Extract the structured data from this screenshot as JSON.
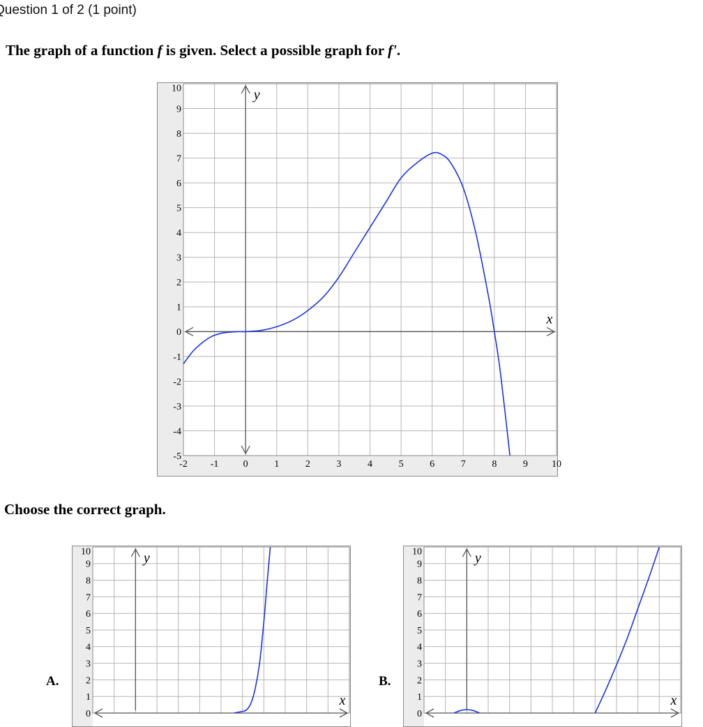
{
  "header": "Question 1 of 2 (1 point)",
  "prompt": {
    "before": "The graph of a function ",
    "fn": "f",
    "middle": " is given. Select a possible graph for ",
    "fn_prime": "f'",
    "after": "."
  },
  "choose_label": "Choose the correct graph.",
  "colors": {
    "curve": "#1a33e6",
    "grid": "#b5b5b5",
    "axis": "#555555",
    "frame": "#8a8a8a"
  },
  "chart_data": [
    {
      "id": "main",
      "type": "line",
      "xlabel": "x",
      "ylabel": "y",
      "xlim": [
        -2,
        10
      ],
      "ylim": [
        -5,
        10
      ],
      "xticks": [
        "-2",
        "-1",
        "0",
        "1",
        "2",
        "3",
        "4",
        "5",
        "6",
        "7",
        "8",
        "9",
        "10"
      ],
      "yticks": [
        "10",
        "9",
        "8",
        "7",
        "6",
        "5",
        "4",
        "3",
        "2",
        "1",
        "0",
        "-1",
        "-2",
        "-3",
        "-4",
        "-5"
      ],
      "grid": true,
      "series": [
        {
          "x": [
            -2,
            -1.7,
            -1.4,
            -1.1,
            -0.8,
            -0.5,
            -0.2,
            0,
            0.5,
            1,
            1.5,
            2,
            2.5,
            3,
            3.5,
            4,
            4.5,
            5,
            5.5,
            6,
            6.3,
            6.6,
            7,
            7.4,
            7.8,
            8,
            8.2,
            8.5
          ],
          "y": [
            -1.3,
            -0.8,
            -0.45,
            -0.2,
            -0.07,
            -0.02,
            0,
            0,
            0.05,
            0.2,
            0.45,
            0.85,
            1.4,
            2.2,
            3.2,
            4.2,
            5.2,
            6.2,
            6.8,
            7.2,
            7.15,
            6.8,
            5.8,
            4.0,
            1.5,
            0,
            -1.7,
            -5
          ]
        }
      ]
    },
    {
      "id": "option-a",
      "type": "line",
      "label": "A.",
      "xlabel": "x",
      "ylabel": "y",
      "xlim": [
        -2,
        10
      ],
      "ylim": [
        0,
        10
      ],
      "yticks": [
        "10",
        "9",
        "8",
        "7",
        "6",
        "5",
        "4",
        "3",
        "2",
        "1",
        "0"
      ],
      "grid": true,
      "series": [
        {
          "x": [
            4.6,
            4.8,
            5,
            5.2,
            5.4,
            5.6,
            5.8,
            6.0,
            6.15,
            6.3
          ],
          "y": [
            0,
            0.05,
            0.1,
            0.2,
            0.6,
            1.5,
            3.0,
            5.5,
            7.8,
            10
          ]
        }
      ]
    },
    {
      "id": "option-b",
      "type": "line",
      "label": "B.",
      "xlabel": "x",
      "ylabel": "y",
      "xlim": [
        -2,
        10
      ],
      "ylim": [
        0,
        10
      ],
      "yticks": [
        "10",
        "9",
        "8",
        "7",
        "6",
        "5",
        "4",
        "3",
        "2",
        "1",
        "0"
      ],
      "grid": true,
      "series": [
        {
          "x": [
            -0.6,
            -0.3,
            0,
            0.3,
            0.6
          ],
          "y": [
            0,
            0.15,
            0.2,
            0.15,
            0
          ]
        },
        {
          "x": [
            6.0,
            6.5,
            7.0,
            7.5,
            8.0,
            8.5,
            9.0
          ],
          "y": [
            0,
            1.4,
            2.9,
            4.5,
            6.3,
            8.1,
            10
          ]
        }
      ]
    }
  ]
}
